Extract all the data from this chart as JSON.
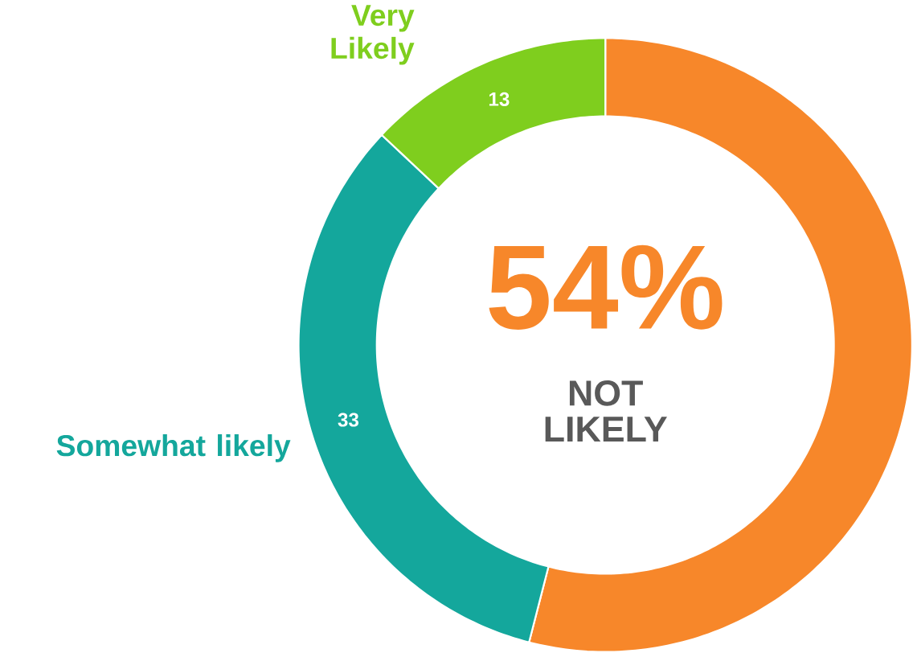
{
  "chart_data": {
    "type": "donut",
    "categories": [
      "NOT LIKELY",
      "Somewhat likely",
      "Very Likely"
    ],
    "values": [
      54,
      33,
      13
    ],
    "colors": [
      "#f7872a",
      "#14a79c",
      "#7fce1e"
    ],
    "value_labels": [
      "54%",
      "33",
      "13"
    ]
  }
}
